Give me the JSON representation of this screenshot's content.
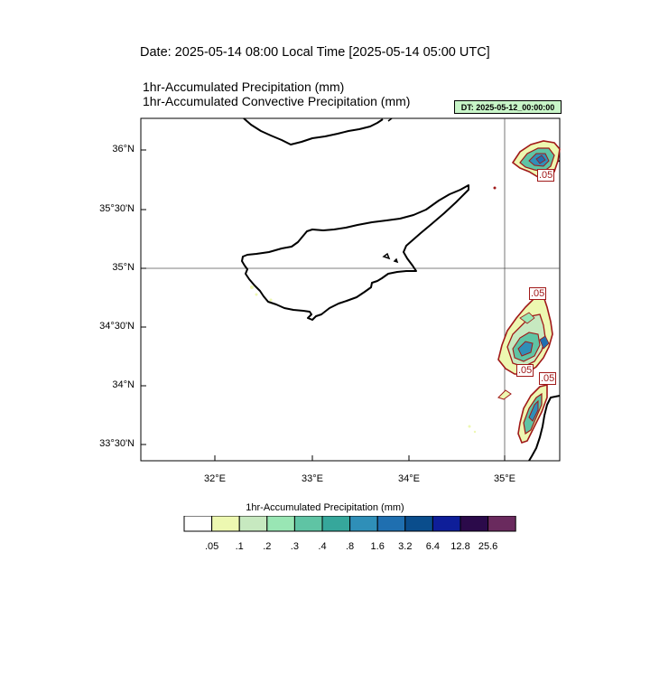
{
  "header": {
    "date_line": "Date: 2025-05-14  08:00 Local Time [2025-05-14  05:00 UTC]",
    "title_1": "1hr-Accumulated Precipitation   (mm)",
    "title_2": "1hr-Accumulated Convective Precipitation   (mm)",
    "dt_badge": "DT: 2025-05-12_00:00:00"
  },
  "map": {
    "lat_labels": [
      "36°N",
      "35°30'N",
      "35°N",
      "34°30'N",
      "34°N",
      "33°30'N"
    ],
    "lon_labels": [
      "32°E",
      "33°E",
      "34°E",
      "35°E"
    ],
    "contour_labels": [
      ".05",
      ".05",
      ".05",
      ".05"
    ],
    "coast_color": "#000000",
    "contour_color": "#a01818"
  },
  "colorbar": {
    "title": "1hr-Accumulated Precipitation  (mm)",
    "labels": [
      ".05",
      ".1",
      ".2",
      ".3",
      ".4",
      ".8",
      "1.6",
      "3.2",
      "6.4",
      "12.8",
      "25.6"
    ],
    "colors": [
      "#ffffff",
      "#edf8b1",
      "#c7e9c0",
      "#99e6b4",
      "#5fc4a4",
      "#36a79b",
      "#2f8fb8",
      "#1f6fb0",
      "#0a4d8c",
      "#0e1e99",
      "#2b0a4a",
      "#6a2a5e"
    ]
  }
}
